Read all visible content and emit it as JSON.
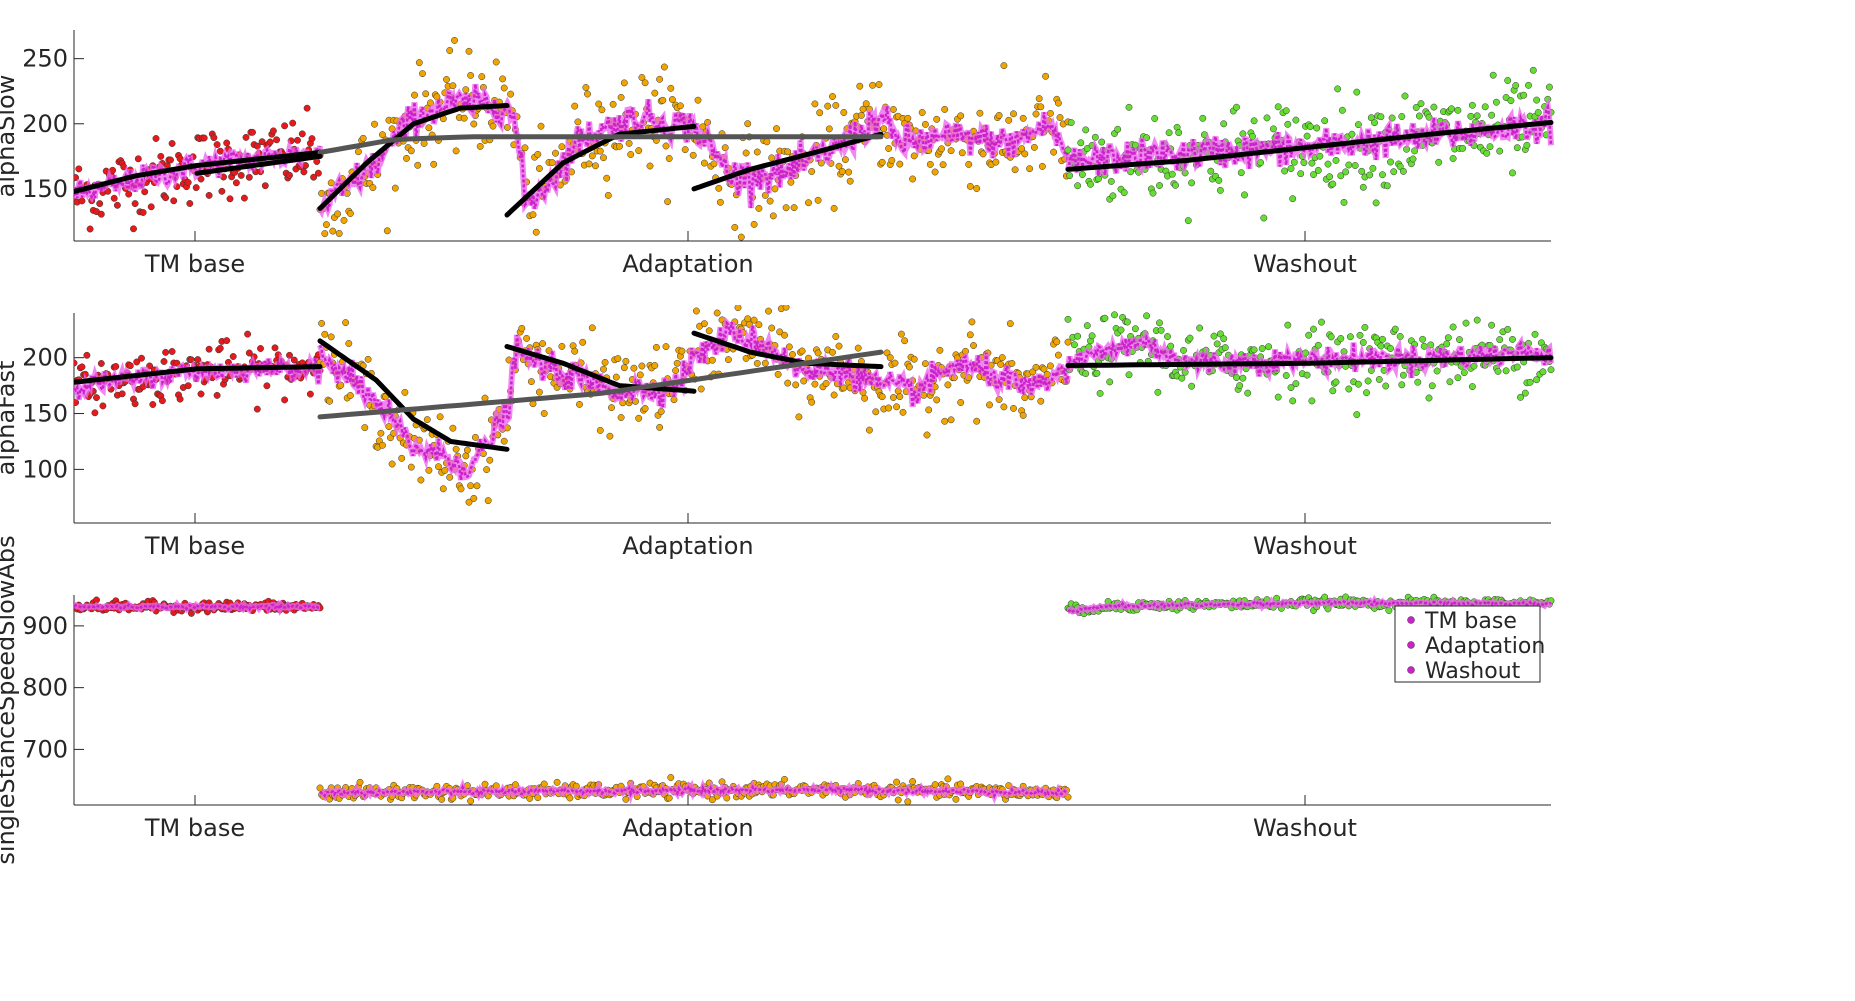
{
  "chart_data": [
    {
      "type": "scatter",
      "ylabel": "alphaSlow",
      "ylim": [
        110,
        272
      ],
      "yticks": [
        150,
        200,
        250
      ],
      "conditions": [
        "TM base",
        "Adaptation",
        "Washout"
      ],
      "condition_ranges": [
        [
          0,
          1
        ],
        [
          1,
          5
        ],
        [
          5,
          7
        ]
      ],
      "series": [
        {
          "color": "#e41a1c",
          "range": [
            0,
            1
          ],
          "mean_start": 145,
          "mean_end": 178,
          "noise": 14,
          "smooth": [
            [
              0,
              145
            ],
            [
              0.5,
              168
            ],
            [
              1,
              178
            ]
          ]
        },
        {
          "color": "#f0a400",
          "range": [
            1,
            5
          ],
          "noise": 18,
          "smooth": [
            [
              1.0,
              135
            ],
            [
              1.3,
              170
            ],
            [
              1.5,
              205
            ],
            [
              1.7,
              215
            ],
            [
              2.0,
              215
            ],
            [
              2.05,
              195
            ],
            [
              2.1,
              140
            ],
            [
              2.2,
              150
            ],
            [
              2.4,
              190
            ],
            [
              2.7,
              205
            ],
            [
              3.0,
              198
            ],
            [
              3.2,
              160
            ],
            [
              3.5,
              162
            ],
            [
              3.8,
              185
            ],
            [
              4.0,
              205
            ],
            [
              4.1,
              185
            ],
            [
              4.4,
              190
            ],
            [
              4.7,
              185
            ],
            [
              4.9,
              200
            ],
            [
              5.0,
              175
            ]
          ]
        },
        {
          "color": "#66dd33",
          "range": [
            5,
            7
          ],
          "noise": 18,
          "smooth": [
            [
              5.0,
              170
            ],
            [
              5.3,
              175
            ],
            [
              5.6,
              178
            ],
            [
              6.0,
              182
            ],
            [
              6.5,
              190
            ],
            [
              7.0,
              200
            ]
          ]
        }
      ],
      "fits": [
        {
          "color": "#000000",
          "points": [
            [
              0,
              148
            ],
            [
              0.25,
              160
            ],
            [
              0.5,
              168
            ],
            [
              1.0,
              178
            ]
          ]
        },
        {
          "color": "#000000",
          "points": [
            [
              1.0,
              135
            ],
            [
              1.25,
              170
            ],
            [
              1.5,
              200
            ],
            [
              1.75,
              212
            ],
            [
              2.0,
              214
            ]
          ]
        },
        {
          "color": "#000000",
          "points": [
            [
              2.0,
              130
            ],
            [
              2.3,
              170
            ],
            [
              2.6,
              192
            ],
            [
              3.0,
              198
            ]
          ]
        },
        {
          "color": "#000000",
          "points": [
            [
              3.0,
              150
            ],
            [
              3.3,
              165
            ],
            [
              3.7,
              180
            ],
            [
              4.0,
              192
            ]
          ]
        },
        {
          "color": "#000000",
          "points": [
            [
              5.0,
              165
            ],
            [
              5.5,
              172
            ],
            [
              6.0,
              182
            ],
            [
              6.5,
              192
            ],
            [
              7.0,
              201
            ]
          ]
        },
        {
          "color": "#555555",
          "points": [
            [
              1.0,
              178
            ],
            [
              1.4,
              188
            ],
            [
              1.8,
              190
            ],
            [
              4.0,
              190
            ]
          ]
        },
        {
          "color": "#000000",
          "points": [
            [
              0.5,
              162
            ],
            [
              1.0,
              175
            ]
          ]
        }
      ]
    },
    {
      "type": "scatter",
      "ylabel": "alphaFast",
      "ylim": [
        52,
        240
      ],
      "yticks": [
        100,
        150,
        200
      ],
      "conditions": [
        "TM base",
        "Adaptation",
        "Washout"
      ],
      "series": [
        {
          "color": "#e41a1c",
          "range": [
            0,
            1
          ],
          "noise": 12,
          "smooth": [
            [
              0,
              175
            ],
            [
              0.5,
              188
            ],
            [
              1,
              192
            ]
          ]
        },
        {
          "color": "#f0a400",
          "range": [
            1,
            5
          ],
          "noise": 18,
          "smooth": [
            [
              1.0,
              205
            ],
            [
              1.3,
              160
            ],
            [
              1.5,
              120
            ],
            [
              1.7,
              110
            ],
            [
              1.8,
              100
            ],
            [
              2.0,
              150
            ],
            [
              2.05,
              205
            ],
            [
              2.3,
              185
            ],
            [
              2.6,
              170
            ],
            [
              2.9,
              175
            ],
            [
              3.0,
              200
            ],
            [
              3.2,
              222
            ],
            [
              3.4,
              210
            ],
            [
              3.6,
              185
            ],
            [
              3.8,
              190
            ],
            [
              4.0,
              175
            ],
            [
              4.2,
              170
            ],
            [
              4.4,
              195
            ],
            [
              4.6,
              185
            ],
            [
              4.8,
              170
            ],
            [
              5.0,
              190
            ]
          ]
        },
        {
          "color": "#66dd33",
          "range": [
            5,
            7
          ],
          "noise": 15,
          "smooth": [
            [
              5.0,
              195
            ],
            [
              5.3,
              215
            ],
            [
              5.5,
              195
            ],
            [
              6.0,
              198
            ],
            [
              6.5,
              200
            ],
            [
              7.0,
              205
            ]
          ]
        }
      ],
      "fits": [
        {
          "color": "#000000",
          "points": [
            [
              0,
              178
            ],
            [
              0.5,
              190
            ],
            [
              1.0,
              192
            ]
          ]
        },
        {
          "color": "#000000",
          "points": [
            [
              1.0,
              215
            ],
            [
              1.3,
              180
            ],
            [
              1.5,
              145
            ],
            [
              1.7,
              125
            ],
            [
              2.0,
              118
            ]
          ]
        },
        {
          "color": "#000000",
          "points": [
            [
              2.0,
              210
            ],
            [
              2.3,
              195
            ],
            [
              2.6,
              175
            ],
            [
              3.0,
              170
            ]
          ]
        },
        {
          "color": "#000000",
          "points": [
            [
              3.0,
              222
            ],
            [
              3.3,
              205
            ],
            [
              3.6,
              195
            ],
            [
              4.0,
              192
            ]
          ]
        },
        {
          "color": "#000000",
          "points": [
            [
              5.0,
              193
            ],
            [
              6.0,
              195
            ],
            [
              7.0,
              200
            ]
          ]
        },
        {
          "color": "#555555",
          "points": [
            [
              1.0,
              147
            ],
            [
              2.5,
              168
            ],
            [
              4.0,
              205
            ]
          ]
        }
      ]
    },
    {
      "type": "scatter",
      "ylabel": "singleStanceSpeedSlowAbs",
      "ylim": [
        610,
        950
      ],
      "yticks": [
        700,
        800,
        900
      ],
      "conditions": [
        "TM base",
        "Adaptation",
        "Washout"
      ],
      "series": [
        {
          "color": "#e41a1c",
          "range": [
            0,
            1
          ],
          "noise": 4,
          "smooth": [
            [
              0,
              931
            ],
            [
              1,
              931
            ]
          ]
        },
        {
          "color": "#f0a400",
          "range": [
            1,
            4
          ],
          "noise": 6,
          "smooth": [
            [
              1,
              630
            ],
            [
              2,
              632
            ],
            [
              3,
              635
            ],
            [
              4,
              630
            ]
          ]
        },
        {
          "color": "#66dd33",
          "range": [
            4,
            6
          ],
          "noise": 4,
          "smooth": [
            [
              4,
              925
            ],
            [
              4.2,
              932
            ],
            [
              5,
              937
            ],
            [
              6,
              936
            ]
          ]
        }
      ],
      "legend": {
        "placement": "right",
        "entries": [
          "TM base",
          "Adaptation",
          "Washout"
        ],
        "marker_color": "#cc22cc"
      }
    }
  ],
  "colors": {
    "magenta": "#cc22cc",
    "magenta_light": "#ee66ee"
  }
}
